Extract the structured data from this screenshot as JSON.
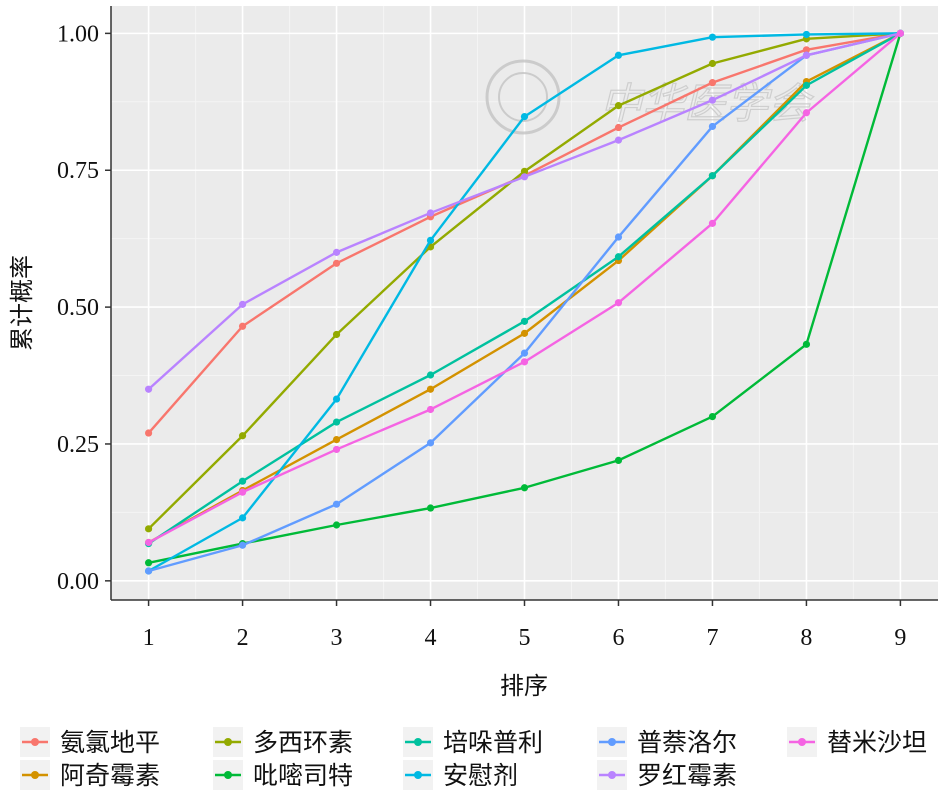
{
  "watermark": {
    "text": "中华医学会"
  },
  "chart_data": {
    "type": "line",
    "xlabel": "排序",
    "ylabel": "累计概率",
    "x": [
      1,
      2,
      3,
      4,
      5,
      6,
      7,
      8,
      9
    ],
    "xticks": [
      "1",
      "2",
      "3",
      "4",
      "5",
      "6",
      "7",
      "8",
      "9"
    ],
    "yticks": [
      "0.00",
      "0.25",
      "0.50",
      "0.75",
      "1.00"
    ],
    "xlim": [
      0.6,
      9.4
    ],
    "ylim": [
      -0.035,
      1.05
    ],
    "grid": true,
    "legend_position": "bottom",
    "series": [
      {
        "name": "氨氯地平",
        "color": "#F8766D",
        "values": [
          0.27,
          0.465,
          0.58,
          0.665,
          0.74,
          0.828,
          0.91,
          0.97,
          1.0
        ]
      },
      {
        "name": "阿奇霉素",
        "color": "#D39200",
        "values": [
          0.07,
          0.165,
          0.258,
          0.35,
          0.452,
          0.585,
          0.74,
          0.912,
          1.0
        ]
      },
      {
        "name": "多西环素",
        "color": "#93AA00",
        "values": [
          0.095,
          0.265,
          0.45,
          0.61,
          0.748,
          0.868,
          0.945,
          0.99,
          1.0
        ]
      },
      {
        "name": "吡嘧司特",
        "color": "#00BA38",
        "values": [
          0.033,
          0.068,
          0.102,
          0.133,
          0.17,
          0.22,
          0.3,
          0.432,
          1.0
        ]
      },
      {
        "name": "培哚普利",
        "color": "#00C19F",
        "values": [
          0.068,
          0.182,
          0.29,
          0.376,
          0.474,
          0.592,
          0.74,
          0.905,
          1.0
        ]
      },
      {
        "name": "安慰剂",
        "color": "#00B9E3",
        "values": [
          0.018,
          0.115,
          0.332,
          0.622,
          0.848,
          0.96,
          0.993,
          0.998,
          1.0
        ]
      },
      {
        "name": "普萘洛尔",
        "color": "#619CFF",
        "values": [
          0.018,
          0.065,
          0.14,
          0.252,
          0.416,
          0.628,
          0.83,
          0.96,
          1.0
        ]
      },
      {
        "name": "罗红霉素",
        "color": "#B983FF",
        "values": [
          0.35,
          0.505,
          0.6,
          0.672,
          0.738,
          0.805,
          0.878,
          0.96,
          1.0
        ]
      },
      {
        "name": "替米沙坦",
        "color": "#F564E3",
        "values": [
          0.07,
          0.162,
          0.24,
          0.313,
          0.4,
          0.508,
          0.653,
          0.855,
          1.0
        ]
      }
    ]
  }
}
